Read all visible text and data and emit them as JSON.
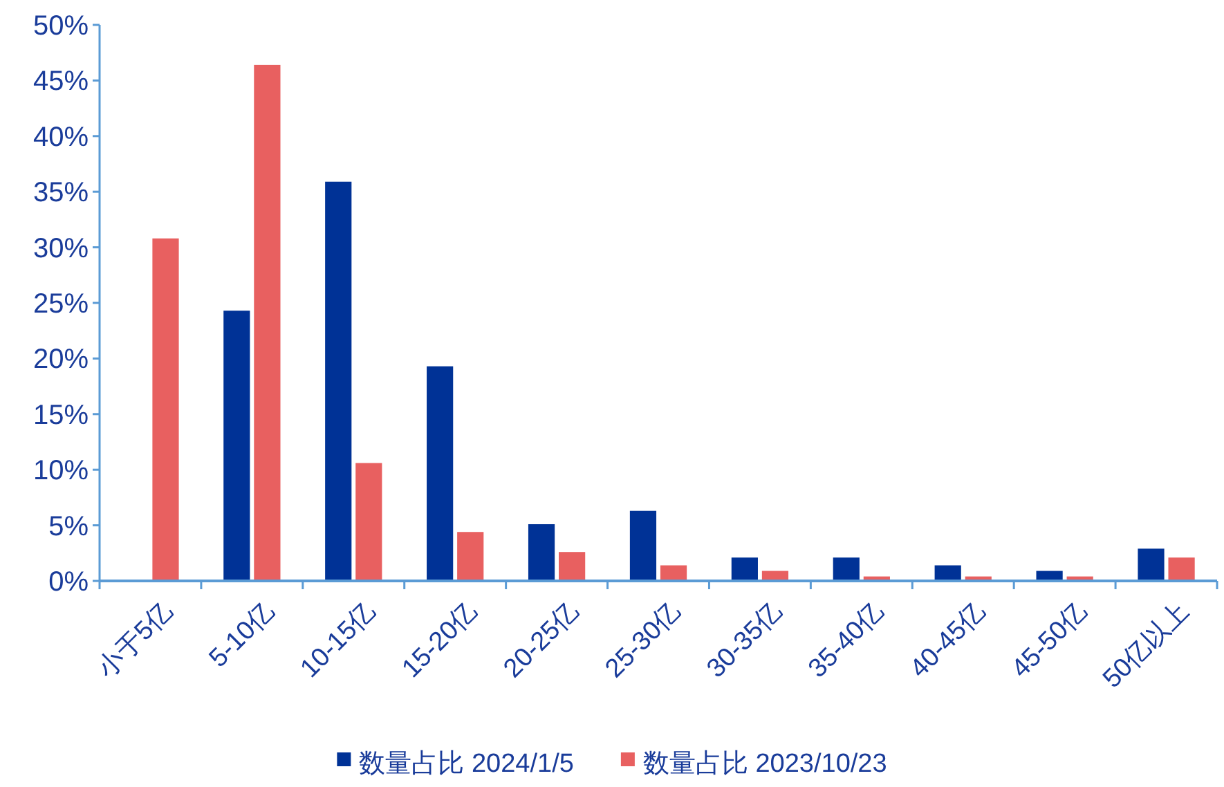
{
  "chart_data": {
    "type": "bar",
    "categories": [
      "小于5亿",
      "5-10亿",
      "10-15亿",
      "15-20亿",
      "20-25亿",
      "25-30亿",
      "30-35亿",
      "35-40亿",
      "40-45亿",
      "45-50亿",
      "50亿以上"
    ],
    "series": [
      {
        "name": "数量占比 2024/1/5",
        "color": "#003296",
        "values": [
          0,
          24.3,
          35.9,
          19.3,
          5.1,
          6.3,
          2.1,
          2.1,
          1.4,
          0.9,
          2.9
        ]
      },
      {
        "name": "数量占比 2023/10/23",
        "color": "#e86060",
        "values": [
          30.8,
          46.4,
          10.6,
          4.4,
          2.6,
          1.4,
          0.9,
          0.4,
          0.4,
          0.4,
          2.1
        ]
      }
    ],
    "ylim": [
      0,
      50
    ],
    "yticks": [
      {
        "value": 0,
        "label": "0%"
      },
      {
        "value": 5,
        "label": "5%"
      },
      {
        "value": 10,
        "label": "10%"
      },
      {
        "value": 15,
        "label": "15%"
      },
      {
        "value": 20,
        "label": "20%"
      },
      {
        "value": 25,
        "label": "25%"
      },
      {
        "value": 30,
        "label": "30%"
      },
      {
        "value": 35,
        "label": "35%"
      },
      {
        "value": 40,
        "label": "40%"
      },
      {
        "value": 45,
        "label": "45%"
      },
      {
        "value": 50,
        "label": "50%"
      }
    ],
    "grid": false,
    "legend": "bottom"
  }
}
